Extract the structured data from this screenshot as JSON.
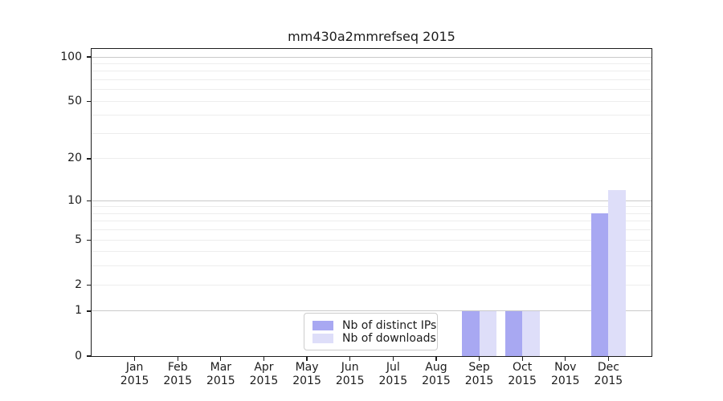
{
  "title": "mm430a2mmrefseq 2015",
  "chart_data": {
    "type": "bar",
    "title": "mm430a2mmrefseq 2015",
    "categories": [
      "Jan",
      "Feb",
      "Mar",
      "Apr",
      "May",
      "Jun",
      "Jul",
      "Aug",
      "Sep",
      "Oct",
      "Nov",
      "Dec"
    ],
    "x_year": "2015",
    "series": [
      {
        "name": "Nb of distinct IPs",
        "color": "#a8a8f2",
        "values": [
          0,
          0,
          0,
          0,
          0,
          0,
          0,
          0,
          1,
          1,
          0,
          8
        ]
      },
      {
        "name": "Nb of downloads",
        "color": "#dedef9",
        "values": [
          0,
          0,
          0,
          0,
          0,
          0,
          0,
          0,
          1,
          1,
          0,
          12
        ]
      }
    ],
    "xlabel": "",
    "ylabel": "",
    "ylim": [
      0,
      100
    ],
    "y_scale": "log1p",
    "yticks": [
      0,
      1,
      2,
      5,
      10,
      20,
      50,
      100
    ],
    "major_gridlines": [
      1,
      10,
      100
    ],
    "minor_gridlines": [
      2,
      3,
      4,
      5,
      6,
      7,
      8,
      9,
      20,
      30,
      40,
      50,
      60,
      70,
      80,
      90
    ],
    "grid": true,
    "legend_position": "lower center"
  },
  "colors": {
    "spine": "#1c1c1c",
    "major_grid": "#c9c9c9",
    "minor_grid": "#ededed",
    "legend_border": "#cccccc",
    "bar_distinct_ips": "#a8a8f2",
    "bar_downloads": "#dedef9"
  }
}
